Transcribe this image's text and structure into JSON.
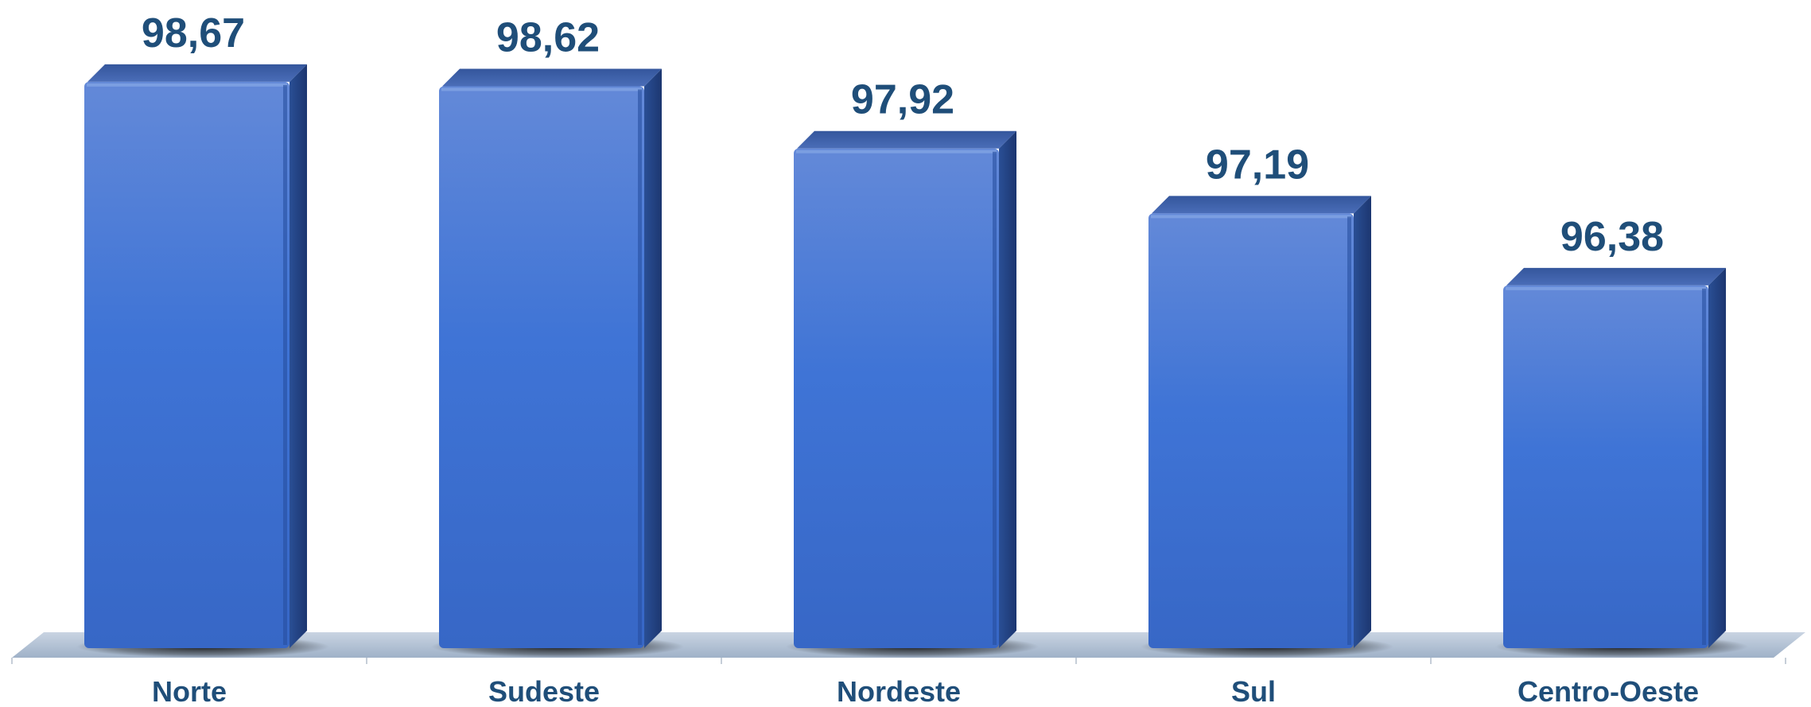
{
  "chart_data": {
    "type": "bar",
    "title": "",
    "xlabel": "",
    "ylabel": "",
    "categories": [
      "Norte",
      "Sudeste",
      "Nordeste",
      "Sul",
      "Centro-Oeste"
    ],
    "values": [
      98.67,
      98.62,
      97.92,
      97.19,
      96.38
    ],
    "value_labels": [
      "98,67",
      "98,62",
      "97,92",
      "97,19",
      "96,38"
    ],
    "ylim": [
      92.3,
      99.0
    ],
    "grid": false,
    "legend": "none",
    "style": "3d-column",
    "colors": {
      "bar_front": "#3A6FD0",
      "bar_top": "#3E5FA8",
      "bar_side": "#22417F",
      "floor": "#B4C4D8",
      "label_text": "#1F4E79",
      "axis_tick": "#C6CED8"
    }
  }
}
